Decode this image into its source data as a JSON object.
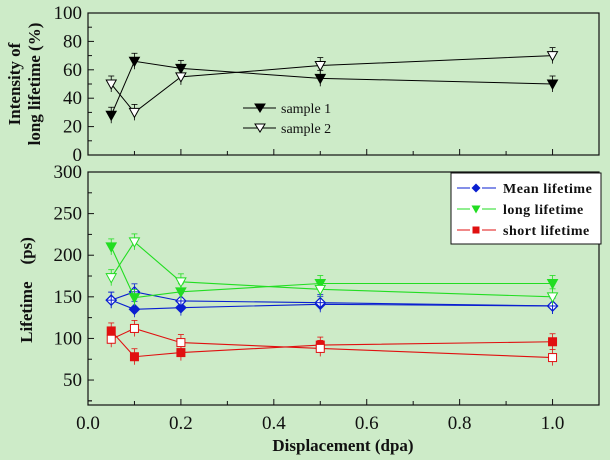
{
  "chart_data": [
    {
      "type": "line",
      "panel": "top",
      "title": "",
      "xlabel": "",
      "ylabel_lines": [
        "Intensity of",
        "long lifetime  (%)"
      ],
      "xlim": [
        0,
        1.1
      ],
      "ylim": [
        0,
        100
      ],
      "yticks": [
        0,
        20,
        40,
        60,
        80,
        100
      ],
      "ytick_labels": [
        "0",
        "20",
        "40",
        "60",
        "80",
        "100"
      ],
      "xticks": [
        0.0,
        0.2,
        0.4,
        0.6,
        0.8,
        1.0
      ],
      "grid": false,
      "legend_position": "center",
      "x": [
        0.05,
        0.1,
        0.2,
        0.5,
        1.0
      ],
      "series": [
        {
          "name": "sample 1",
          "marker": "triangle-down-filled",
          "color": "#000000",
          "values": [
            28,
            66,
            61,
            54,
            50
          ]
        },
        {
          "name": "sample 2",
          "marker": "triangle-down-open",
          "color": "#000000",
          "values": [
            50,
            30,
            55,
            63,
            70
          ]
        }
      ]
    },
    {
      "type": "line",
      "panel": "bottom",
      "title": "",
      "xlabel": "Displacement (dpa)",
      "ylabel": "Lifetime    (ps)",
      "xlim": [
        0,
        1.1
      ],
      "ylim": [
        20,
        300
      ],
      "yticks": [
        50,
        100,
        150,
        200,
        250,
        300
      ],
      "ytick_labels": [
        "50",
        "100",
        "150",
        "200",
        "250",
        "300"
      ],
      "xticks": [
        0.0,
        0.2,
        0.4,
        0.6,
        0.8,
        1.0
      ],
      "xtick_labels": [
        "0.0",
        "0.2",
        "0.4",
        "0.6",
        "0.8",
        "1.0"
      ],
      "grid": false,
      "legend_position": "top-right",
      "x": [
        0.05,
        0.1,
        0.2,
        0.5,
        1.0
      ],
      "series": [
        {
          "name": "Mean lifetime",
          "group": "sample 1",
          "marker": "diamond-filled",
          "color": "#0a1fd0",
          "values": [
            146,
            135,
            137,
            141,
            139
          ],
          "legend": true
        },
        {
          "name": "Mean lifetime (sample 2)",
          "group": "sample 2",
          "marker": "diamond-open",
          "color": "#0a1fd0",
          "values": [
            146,
            156,
            145,
            143,
            139
          ],
          "legend": false
        },
        {
          "name": "long lifetime",
          "group": "sample 1",
          "marker": "triangle-down-filled",
          "color": "#22dd22",
          "values": [
            210,
            149,
            156,
            166,
            166
          ],
          "legend": true
        },
        {
          "name": "long lifetime (sample 2)",
          "group": "sample 2",
          "marker": "triangle-down-open",
          "color": "#22dd22",
          "values": [
            173,
            216,
            168,
            159,
            150
          ],
          "legend": false
        },
        {
          "name": "short lifetime",
          "group": "sample 1",
          "marker": "square-filled",
          "color": "#e01010",
          "values": [
            109,
            78,
            83,
            92,
            96
          ],
          "legend": true
        },
        {
          "name": "short lifetime (sample 2)",
          "group": "sample 2",
          "marker": "square-open",
          "color": "#e01010",
          "values": [
            99,
            112,
            95,
            88,
            77
          ],
          "legend": false
        }
      ]
    }
  ]
}
